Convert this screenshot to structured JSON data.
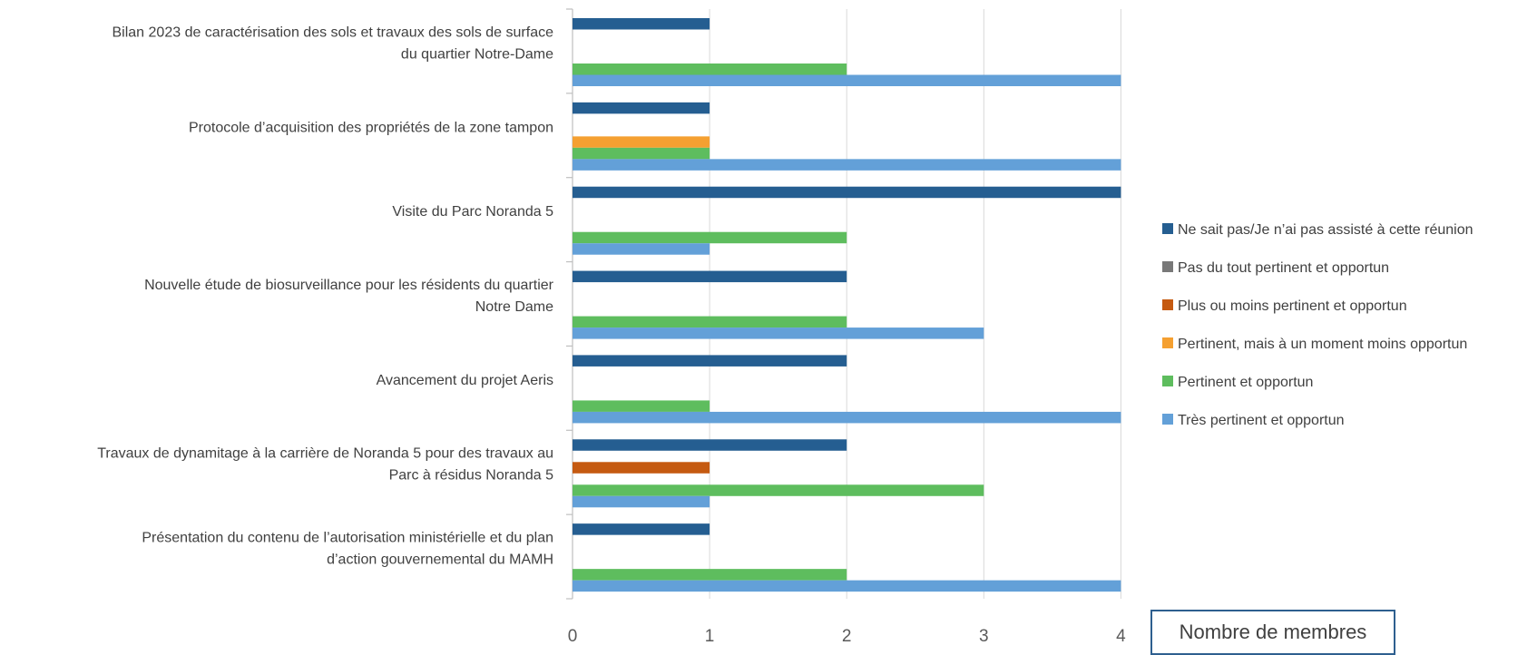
{
  "chart_data": {
    "type": "bar",
    "orientation": "horizontal",
    "title": "",
    "xlabel": "Nombre de membres",
    "ylabel": "",
    "xlim": [
      0,
      4
    ],
    "xticks": [
      "0",
      "1",
      "2",
      "3",
      "4"
    ],
    "grid": true,
    "legend_position": "right",
    "categories": [
      [
        "Bilan 2023 de caractérisation des sols et travaux des sols de surface",
        "du quartier Notre-Dame"
      ],
      [
        "Protocole d’acquisition des propriétés de la zone tampon"
      ],
      [
        "Visite du Parc Noranda 5"
      ],
      [
        "Nouvelle étude de biosurveillance pour les résidents du quartier",
        "Notre Dame"
      ],
      [
        "Avancement du projet Aeris"
      ],
      [
        "Travaux de dynamitage à la carrière de Noranda 5 pour des travaux au",
        "Parc à résidus Noranda 5"
      ],
      [
        "Présentation du contenu de l’autorisation ministérielle et du plan",
        "d’action gouvernemental du MAMH"
      ]
    ],
    "series": [
      {
        "name": "Ne sait pas/Je n’ai pas assisté à cette réunion",
        "color": "#255e91",
        "values": [
          1,
          1,
          4,
          2,
          2,
          2,
          1
        ]
      },
      {
        "name": "Pas du tout pertinent et opportun",
        "color": "#787878",
        "values": [
          0,
          0,
          0,
          0,
          0,
          0,
          0
        ]
      },
      {
        "name": "Plus ou moins pertinent et opportun",
        "color": "#c55a11",
        "values": [
          0,
          0,
          0,
          0,
          0,
          1,
          0
        ]
      },
      {
        "name": "Pertinent, mais à un moment moins opportun",
        "color": "#f5a031",
        "values": [
          0,
          1,
          0,
          0,
          0,
          0,
          0
        ]
      },
      {
        "name": "Pertinent et opportun",
        "color": "#5ebd5e",
        "values": [
          2,
          1,
          2,
          2,
          1,
          3,
          2
        ]
      },
      {
        "name": "Très pertinent et opportun",
        "color": "#63a0d8",
        "values": [
          4,
          4,
          1,
          3,
          4,
          1,
          4
        ]
      }
    ]
  }
}
